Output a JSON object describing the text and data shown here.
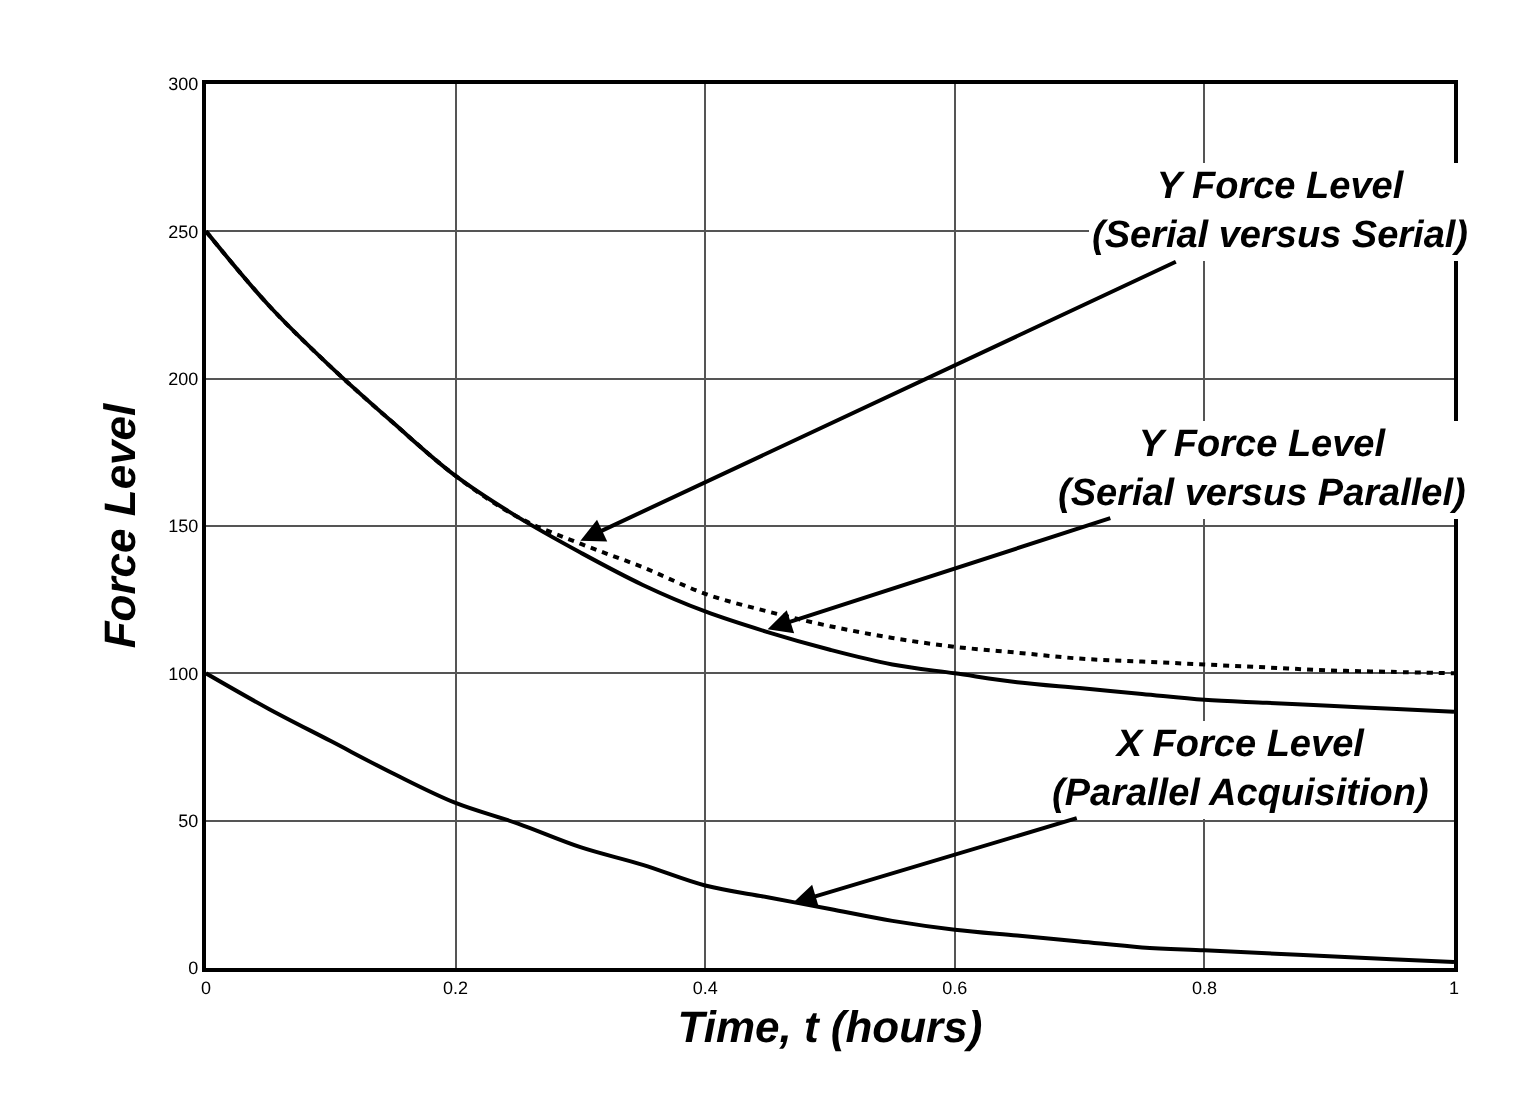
{
  "chart_data": {
    "type": "line",
    "xlabel": "Time, t (hours)",
    "ylabel": "Force Level",
    "x": [
      0,
      0.05,
      0.1,
      0.15,
      0.2,
      0.25,
      0.3,
      0.35,
      0.4,
      0.45,
      0.5,
      0.55,
      0.6,
      0.65,
      0.7,
      0.75,
      0.8,
      0.85,
      0.9,
      0.95,
      1
    ],
    "series": [
      {
        "color": "#000000",
        "line_style": "dotted",
        "values": [
          250,
          225,
          204,
          185,
          167,
          153,
          144,
          136,
          127,
          121,
          116,
          112,
          109,
          107,
          105,
          104,
          103,
          102,
          101,
          100.5,
          100
        ]
      },
      {
        "color": "#000000",
        "line_style": "solid",
        "values": [
          250,
          225,
          204,
          185,
          167,
          153,
          141,
          130,
          121,
          114,
          108,
          103,
          100,
          97,
          95,
          93,
          91,
          90,
          89,
          88,
          87
        ]
      },
      {
        "color": "#000000",
        "line_style": "solid",
        "values": [
          100,
          88,
          77,
          66,
          56,
          49,
          41,
          35,
          28,
          24,
          20,
          16,
          13,
          11,
          9,
          7,
          6,
          5,
          4,
          3,
          2
        ]
      }
    ],
    "xlim": [
      0,
      1
    ],
    "xticks": [
      0,
      0.2,
      0.4,
      0.6,
      0.8,
      1
    ],
    "ylim": [
      0,
      300
    ],
    "yticks": [
      0,
      50,
      100,
      150,
      200,
      250,
      300
    ],
    "grid": true,
    "legend": false,
    "marker": "none",
    "annotations": [
      {
        "text": "Y Force Level\n(Serial versus Serial)",
        "x": 0.3,
        "y": 145
      },
      {
        "text": "Y Force Level\n(Serial versus Parallel)",
        "x": 0.45,
        "y": 115
      },
      {
        "text": "X Force Level\n(Parallel Acquisition)",
        "x": 0.47,
        "y": 22
      }
    ]
  }
}
